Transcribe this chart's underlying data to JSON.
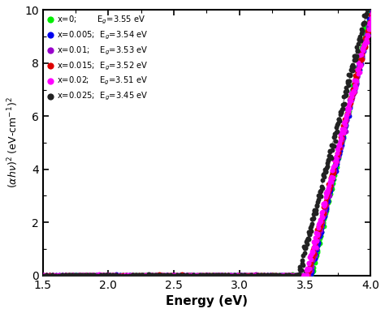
{
  "title": "",
  "xlabel": "Energy (eV)",
  "ylabel": "(αhν)² (eV-cm⁻¹)²",
  "xlim": [
    1.5,
    4.0
  ],
  "ylim": [
    0,
    10
  ],
  "series": [
    {
      "label": "x=0;        E$_g$=3.55 eV",
      "color": "#00ee00",
      "Eg": 3.55,
      "A": 22.0
    },
    {
      "label": "x=0.005;  E$_g$=3.54 eV",
      "color": "#0000ee",
      "Eg": 3.54,
      "A": 21.0
    },
    {
      "label": "x=0.01;    E$_g$=3.53 eV",
      "color": "#9900cc",
      "Eg": 3.53,
      "A": 20.5
    },
    {
      "label": "x=0.015;  E$_g$=3.52 eV",
      "color": "#dd0000",
      "Eg": 3.52,
      "A": 20.0
    },
    {
      "label": "x=0.02;    E$_g$=3.51 eV",
      "color": "#ff00ff",
      "Eg": 3.51,
      "A": 19.5
    },
    {
      "label": "x=0.025;  E$_g$=3.45 eV",
      "color": "#222222",
      "Eg": 3.45,
      "A": 19.0
    }
  ],
  "fit_lines": [
    {
      "Eg": 3.55,
      "A": 22.0
    },
    {
      "Eg": 3.45,
      "A": 19.0
    }
  ],
  "fit_line_color": "#888888",
  "bg_color": "#ffffff",
  "marker_size": 18,
  "n_low": 80,
  "n_high": 160
}
